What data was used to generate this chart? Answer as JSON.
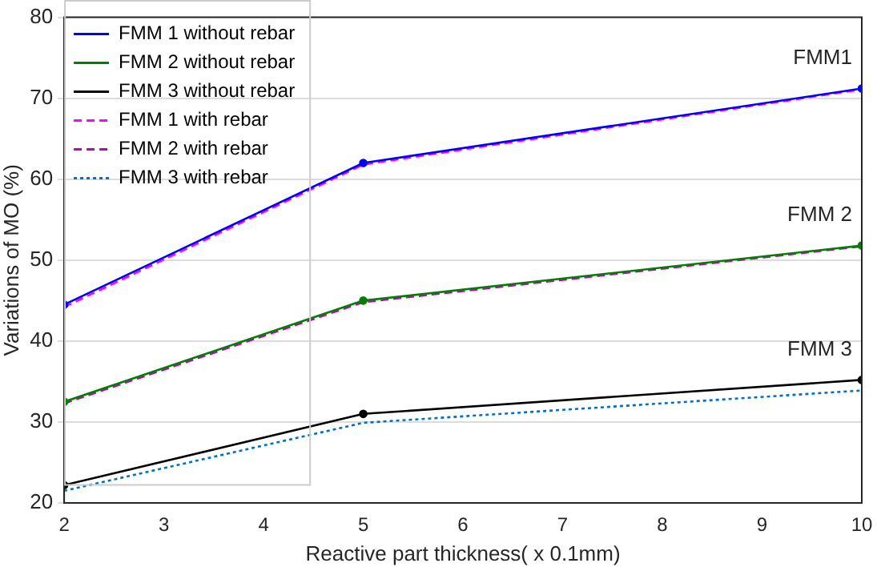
{
  "chart_data": {
    "type": "line",
    "xlabel": "Reactive part thickness( x 0.1mm)",
    "ylabel": "Variations of MO (%)",
    "x": [
      2,
      5,
      10
    ],
    "series": [
      {
        "name": "FMM 1 without rebar",
        "color": "#0000ff",
        "values": [
          44.5,
          62,
          71.2
        ],
        "marker": "circle",
        "line_style": "solid"
      },
      {
        "name": "FMM 2 without rebar",
        "color": "#008000",
        "values": [
          32.5,
          45,
          51.8
        ],
        "marker": "circle",
        "line_style": "solid"
      },
      {
        "name": "FMM 3 without rebar",
        "color": "#000000",
        "values": [
          22.2,
          31,
          35.2
        ],
        "marker": "circle",
        "line_style": "solid"
      },
      {
        "name": "FMM 1 with rebar",
        "color": "#ff00ff",
        "values": [
          44.2,
          61.8,
          71.1
        ],
        "marker": "none",
        "line_style": "dashed"
      },
      {
        "name": "FMM 2 with rebar",
        "color": "#bf00bf",
        "values": [
          32.3,
          44.8,
          51.7
        ],
        "marker": "none",
        "line_style": "dashed"
      },
      {
        "name": "FMM 3 with rebar",
        "color": "#0072bd",
        "values": [
          21.5,
          29.9,
          33.9
        ],
        "marker": "none",
        "line_style": "dotted"
      }
    ],
    "xlim": [
      2,
      10
    ],
    "xticks": [
      2,
      3,
      4,
      5,
      6,
      7,
      8,
      9,
      10
    ],
    "ylim": [
      20,
      80
    ],
    "yticks": [
      20,
      30,
      40,
      50,
      60,
      70,
      80
    ],
    "annotations": [
      "FMM1",
      "FMM 2",
      "FMM 3"
    ],
    "grid": "y",
    "legend": "top left"
  }
}
